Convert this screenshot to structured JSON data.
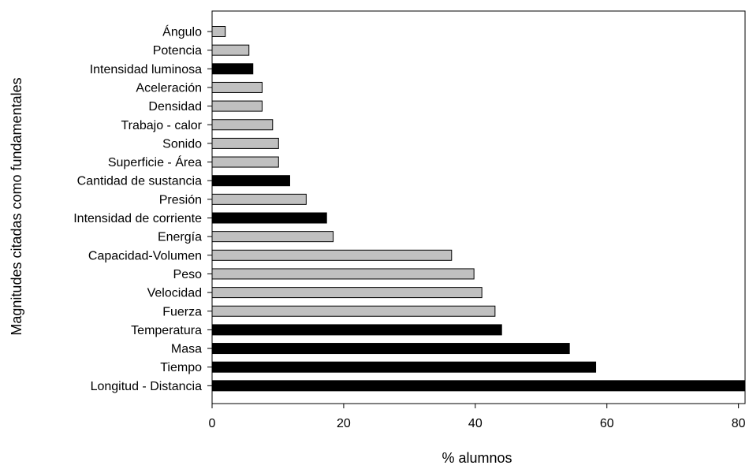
{
  "chart_data": {
    "type": "bar",
    "orientation": "horizontal",
    "title": "",
    "xlabel": "% alumnos",
    "ylabel": "Magnitudes citadas como fundamentales",
    "xlim": [
      0,
      81
    ],
    "xticks": [
      0,
      20,
      40,
      60,
      80
    ],
    "grid": false,
    "legend": "none",
    "categories": [
      "Ángulo",
      "Potencia",
      "Intensidad luminosa",
      "Aceleración",
      "Densidad",
      "Trabajo - calor",
      "Sonido",
      "Superficie - Área",
      "Cantidad de sustancia",
      "Presión",
      "Intensidad de corriente",
      "Energía",
      "Capacidad-Volumen",
      "Peso",
      "Velocidad",
      "Fuerza",
      "Temperatura",
      "Masa",
      "Tiempo",
      "Longitud - Distancia"
    ],
    "values": [
      2,
      5.6,
      6.2,
      7.6,
      7.6,
      9.2,
      10.1,
      10.1,
      11.8,
      14.3,
      17.4,
      18.4,
      36.4,
      39.8,
      41,
      43,
      44,
      54.3,
      58.3,
      81
    ],
    "fundamental": [
      false,
      false,
      true,
      false,
      false,
      false,
      false,
      false,
      true,
      false,
      true,
      false,
      false,
      false,
      false,
      false,
      true,
      true,
      true,
      true
    ],
    "colors": {
      "fundamental": "#000000",
      "other": "#c0c0c0",
      "bar_edge": "#000000"
    }
  }
}
